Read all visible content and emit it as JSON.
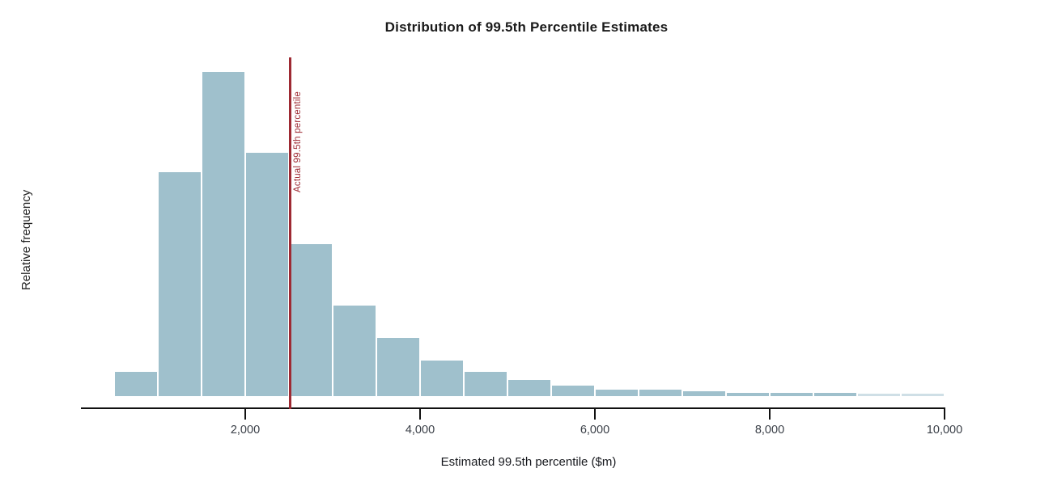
{
  "chart_data": {
    "type": "bar",
    "subtype": "histogram",
    "title": "Distribution of 99.5th Percentile Estimates",
    "xlabel": "Estimated 99.5th percentile ($m)",
    "ylabel": "Relative frequency",
    "grid": false,
    "legend": null,
    "xlim": [
      500,
      10000
    ],
    "bin_width": 500,
    "bin_edges": [
      500,
      1000,
      1500,
      2000,
      2500,
      3000,
      3500,
      4000,
      4500,
      5000,
      5500,
      6000,
      6500,
      7000,
      7500,
      8000,
      8500,
      9000,
      9500,
      10000
    ],
    "values": [
      0.075,
      0.69,
      1.0,
      0.75,
      0.47,
      0.28,
      0.18,
      0.11,
      0.075,
      0.05,
      0.032,
      0.02,
      0.02,
      0.015,
      0.01,
      0.01,
      0.01,
      0.007,
      0.007
    ],
    "x_ticks": [
      {
        "value": 2000,
        "label": "2,000"
      },
      {
        "value": 4000,
        "label": "4,000"
      },
      {
        "value": 6000,
        "label": "6,000"
      },
      {
        "value": 8000,
        "label": "8,000"
      },
      {
        "value": 10000,
        "label": "10,000"
      }
    ],
    "reference_line": {
      "x": 2518,
      "label": "Actual 99.5th percentile"
    },
    "colors": {
      "bar": "#9fc0cc",
      "bar_faded": "#cfdfe6",
      "reference_line": "#9e2a33",
      "axis": "#111111",
      "tick_label": "#3a3f47",
      "title": "#1a1a1a"
    }
  }
}
